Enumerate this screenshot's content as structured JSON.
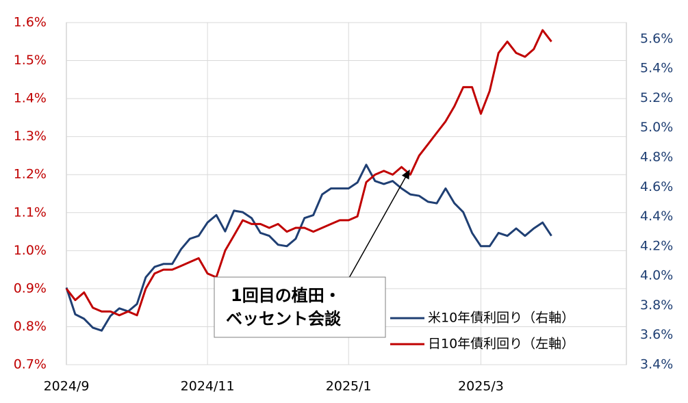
{
  "chart_data": {
    "type": "line",
    "categories": [
      "2024/9",
      null,
      null,
      null,
      null,
      null,
      null,
      null,
      null,
      null,
      null,
      null,
      null,
      null,
      null,
      null,
      "2024/11",
      null,
      null,
      null,
      null,
      null,
      null,
      null,
      null,
      null,
      null,
      null,
      null,
      null,
      null,
      null,
      "2025/1",
      null,
      null,
      null,
      null,
      null,
      null,
      null,
      null,
      null,
      null,
      null,
      null,
      null,
      null,
      "2025/3",
      null,
      null,
      null,
      null,
      null,
      null,
      null,
      null
    ],
    "series": [
      {
        "name": "米10年債利回り（右軸）",
        "color": "#1f3f73",
        "axis": "y2",
        "values": [
          3.92,
          3.74,
          3.71,
          3.65,
          3.63,
          3.73,
          3.78,
          3.76,
          3.81,
          3.99,
          4.06,
          4.08,
          4.08,
          4.18,
          4.25,
          4.27,
          4.36,
          4.41,
          4.3,
          4.44,
          4.43,
          4.39,
          4.29,
          4.27,
          4.21,
          4.2,
          4.25,
          4.39,
          4.41,
          4.55,
          4.59,
          4.59,
          4.59,
          4.63,
          4.75,
          4.64,
          4.62,
          4.64,
          4.59,
          4.55,
          4.54,
          4.5,
          4.49,
          4.59,
          4.49,
          4.43,
          4.29,
          4.2,
          4.2,
          4.29,
          4.27,
          4.32,
          4.27,
          4.32,
          4.36,
          4.27
        ]
      },
      {
        "name": "日10年債利回り（左軸）",
        "color": "#c00000",
        "axis": "y",
        "values": [
          0.9,
          0.87,
          0.89,
          0.85,
          0.84,
          0.84,
          0.83,
          0.84,
          0.83,
          0.9,
          0.94,
          0.95,
          0.95,
          0.96,
          0.97,
          0.98,
          0.94,
          0.93,
          1.0,
          1.04,
          1.08,
          1.07,
          1.07,
          1.06,
          1.07,
          1.05,
          1.06,
          1.06,
          1.05,
          1.06,
          1.07,
          1.08,
          1.08,
          1.09,
          1.18,
          1.2,
          1.21,
          1.2,
          1.22,
          1.2,
          1.25,
          1.28,
          1.31,
          1.34,
          1.38,
          1.43,
          1.43,
          1.36,
          1.42,
          1.52,
          1.55,
          1.52,
          1.51,
          1.53,
          1.58,
          1.55
        ]
      }
    ],
    "ylim": [
      0.7,
      1.6
    ],
    "yticks": [
      {
        "value": 0.7,
        "label": "0.7%"
      },
      {
        "value": 0.8,
        "label": "0.8%"
      },
      {
        "value": 0.9,
        "label": "0.9%"
      },
      {
        "value": 1.0,
        "label": "1.0%"
      },
      {
        "value": 1.1,
        "label": "1.1%"
      },
      {
        "value": 1.2,
        "label": "1.2%"
      },
      {
        "value": 1.3,
        "label": "1.3%"
      },
      {
        "value": 1.4,
        "label": "1.4%"
      },
      {
        "value": 1.5,
        "label": "1.5%"
      },
      {
        "value": 1.6,
        "label": "1.6%"
      }
    ],
    "y2lim": [
      3.4,
      5.71
    ],
    "y2ticks": [
      {
        "value": 3.4,
        "label": "3.4%"
      },
      {
        "value": 3.6,
        "label": "3.6%"
      },
      {
        "value": 3.8,
        "label": "3.8%"
      },
      {
        "value": 4.0,
        "label": "4.0%"
      },
      {
        "value": 4.2,
        "label": "4.2%"
      },
      {
        "value": 4.4,
        "label": "4.4%"
      },
      {
        "value": 4.6,
        "label": "4.6%"
      },
      {
        "value": 4.8,
        "label": "4.8%"
      },
      {
        "value": 5.0,
        "label": "5.0%"
      },
      {
        "value": 5.2,
        "label": "5.2%"
      },
      {
        "value": 5.4,
        "label": "5.4%"
      },
      {
        "value": 5.6,
        "label": "5.6%"
      }
    ],
    "grid": true,
    "legend": "lower right",
    "annotations": [
      {
        "text": [
          "1回目の植田・",
          "ベッセント会談"
        ]
      }
    ]
  }
}
